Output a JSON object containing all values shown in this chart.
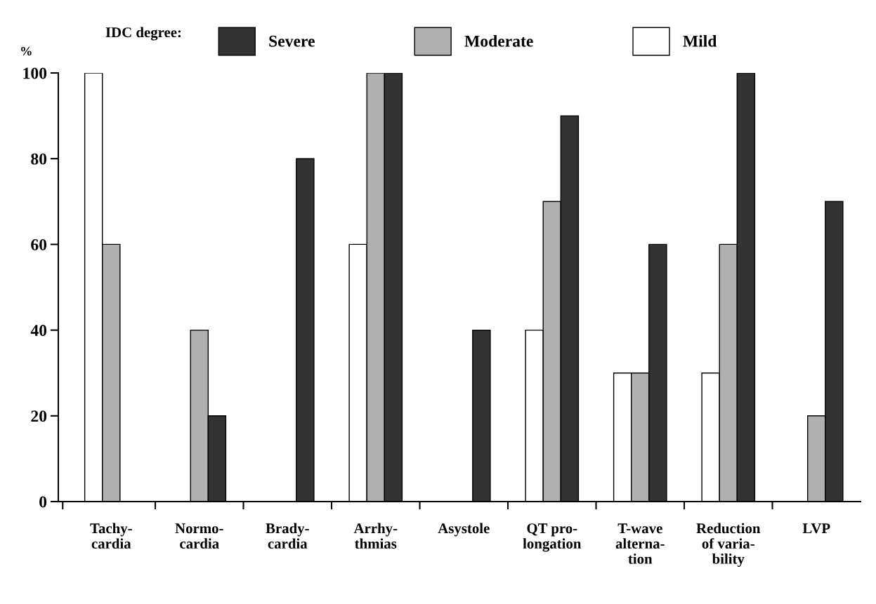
{
  "chart_data": {
    "type": "bar",
    "ylabel": "%",
    "legend_title": "IDC degree:",
    "legend": "top",
    "categories": [
      "Tachy-\ncardia",
      "Normo-\ncardia",
      "Brady-\ncardia",
      "Arrhy-\nthmias",
      "Asystole",
      "QT pro-\nlongation",
      "T-wave\nalterna-\ntion",
      "Reduction\nof varia-\nbility",
      "LVP"
    ],
    "series": [
      {
        "name": "Mild",
        "color": "#ffffff",
        "values": [
          100,
          null,
          null,
          60,
          null,
          40,
          30,
          30,
          null
        ]
      },
      {
        "name": "Moderate",
        "color": "#b0b0b0",
        "values": [
          60,
          40,
          null,
          100,
          null,
          70,
          30,
          60,
          20
        ]
      },
      {
        "name": "Severe",
        "color": "#333333",
        "values": [
          null,
          20,
          80,
          100,
          40,
          90,
          60,
          100,
          70
        ]
      }
    ],
    "ylim": [
      0,
      100
    ],
    "yticks": [
      0,
      20,
      40,
      60,
      80,
      100
    ],
    "grid": false
  }
}
